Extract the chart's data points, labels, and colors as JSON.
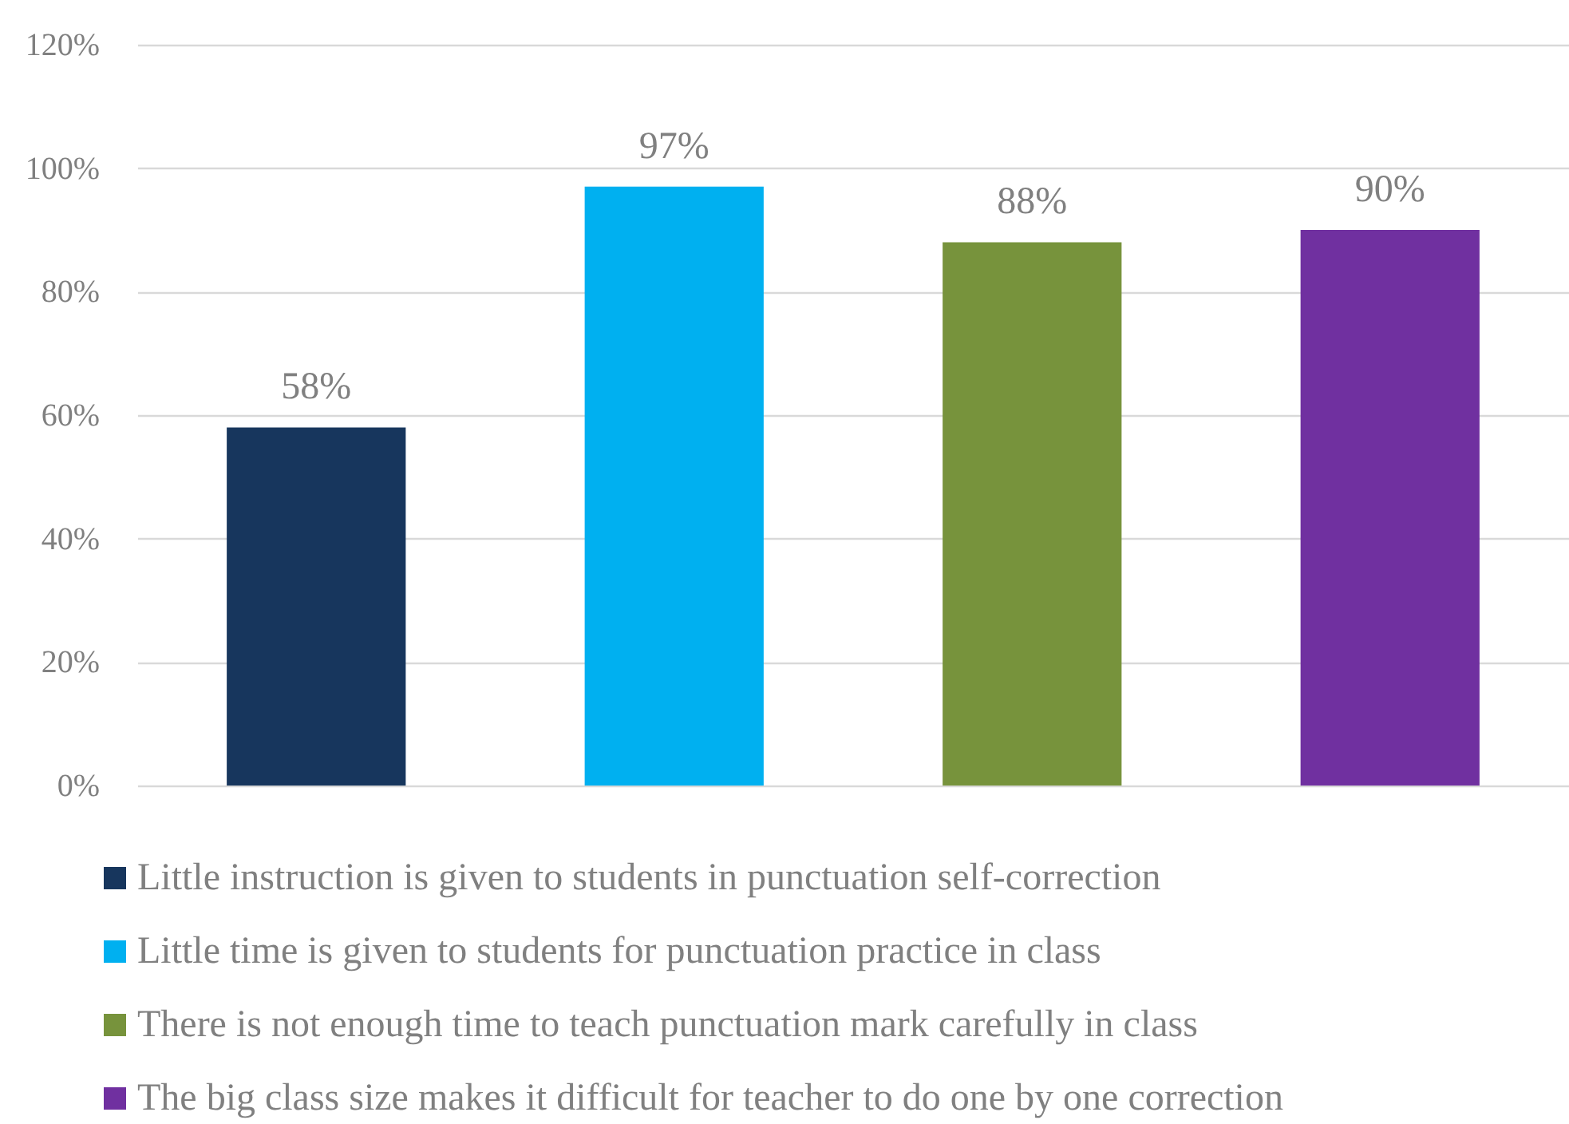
{
  "chart_data": {
    "type": "bar",
    "categories": [
      null
    ],
    "series": [
      {
        "name": "Little instruction is given to students in punctuation self-correction",
        "color": "#17365d",
        "values": [
          58
        ],
        "value_labels": [
          "58%"
        ]
      },
      {
        "name": "Little time is given to students for punctuation practice in class",
        "color": "#00b0f0",
        "values": [
          97
        ],
        "value_labels": [
          "97%"
        ]
      },
      {
        "name": "There is not enough time to teach punctuation mark carefully in class",
        "color": "#77933c",
        "values": [
          88
        ],
        "value_labels": [
          "88%"
        ]
      },
      {
        "name": "The big class size makes it difficult for teacher to do one by one correction",
        "color": "#7030a0",
        "values": [
          90
        ],
        "value_labels": [
          "90%"
        ]
      }
    ],
    "ylim": [
      0,
      120
    ],
    "yticks": [
      {
        "value": 0,
        "label": "0%"
      },
      {
        "value": 20,
        "label": "20%"
      },
      {
        "value": 40,
        "label": "40%"
      },
      {
        "value": 60,
        "label": "60%"
      },
      {
        "value": 80,
        "label": "80%"
      },
      {
        "value": 100,
        "label": "100%"
      },
      {
        "value": 120,
        "label": "120%"
      }
    ],
    "grid": "y",
    "legend": "bottom",
    "tick_labels": "y"
  }
}
